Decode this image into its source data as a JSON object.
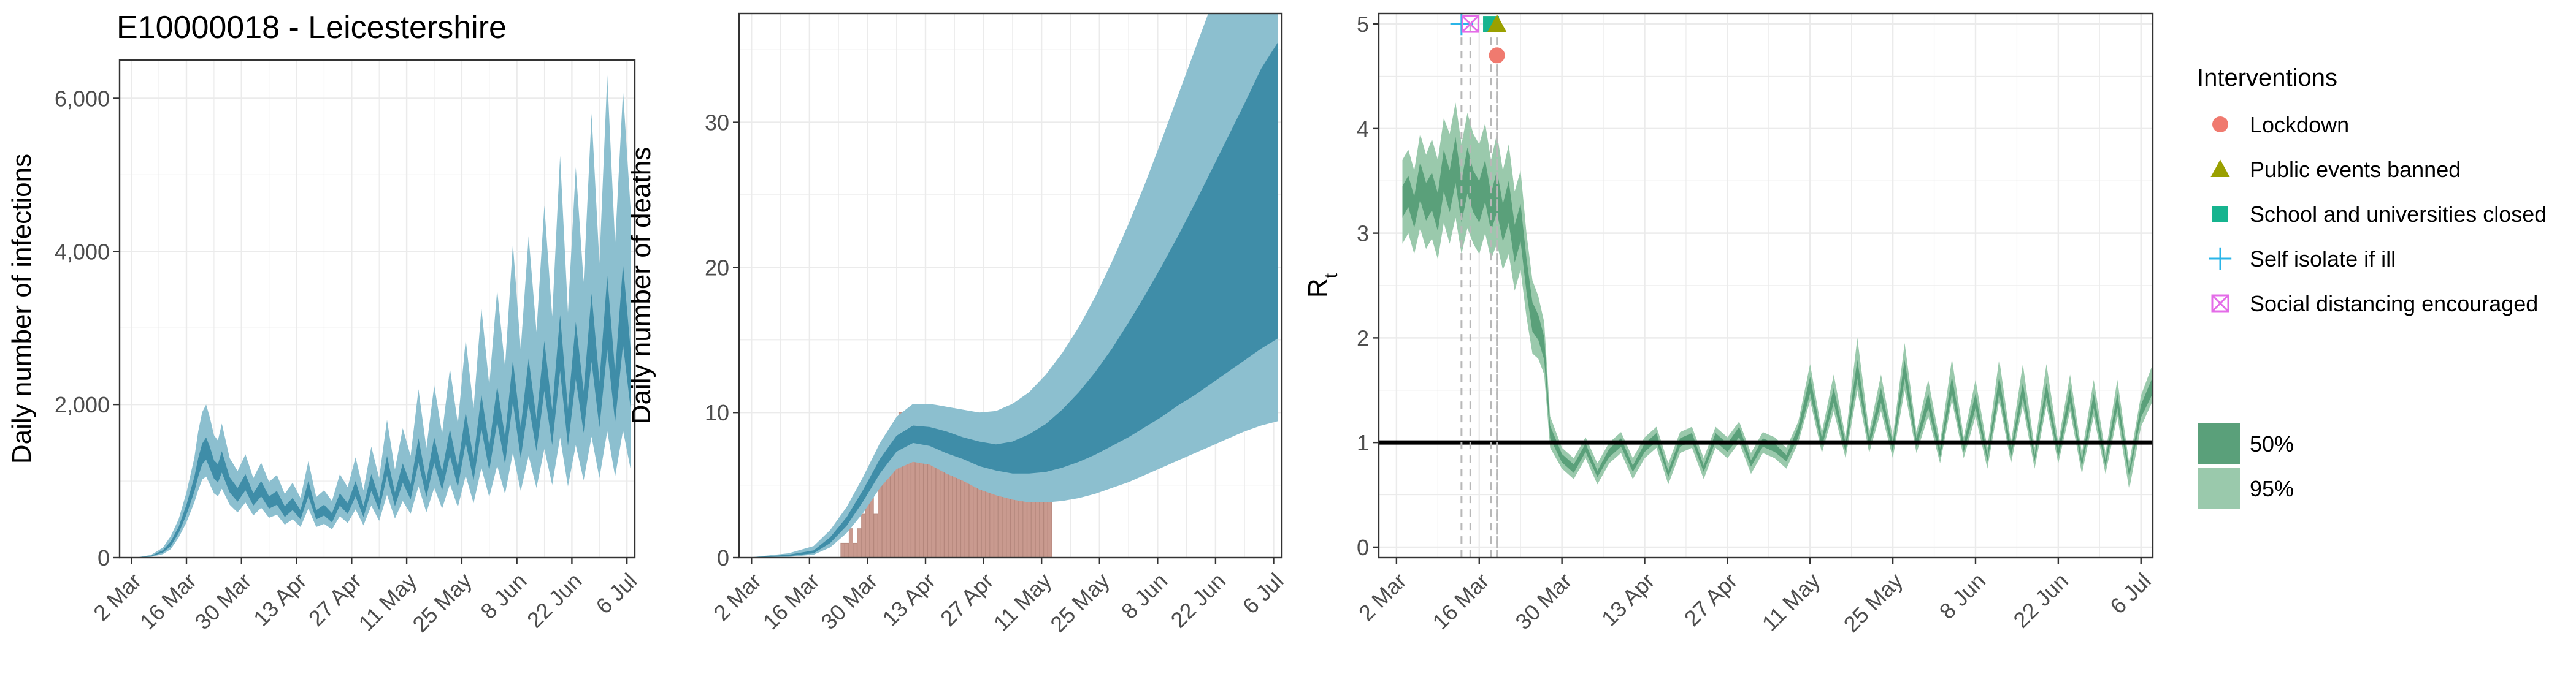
{
  "figure": {
    "title": "E10000018 - Leicestershire"
  },
  "colors": {
    "band_blue_95": "#8cbfcf",
    "band_blue_50": "#3f8da8",
    "band_green_95": "#9ac9ac",
    "band_green_50": "#5aa07a",
    "deaths_bar": "#c99a8f",
    "grid": "#ebebeb",
    "panel_border": "#333333",
    "rt_reference": "#000000",
    "lockdown": "#f07a6f",
    "public_events": "#9aa000",
    "schools": "#16b48f",
    "self_isolate": "#2ab5e8",
    "social_distancing": "#e46ce8"
  },
  "chart_data": [
    {
      "name": "infections",
      "type": "area",
      "ylabel": "Daily number of infections",
      "ylim": [
        0,
        6500
      ],
      "yticks": [
        0,
        2000,
        4000,
        6000
      ],
      "ytick_labels": [
        "0",
        "2,000",
        "4,000",
        "6,000"
      ],
      "xlim": [
        -2,
        129
      ],
      "xticks": [
        1,
        15,
        29,
        43,
        57,
        71,
        85,
        99,
        113,
        127
      ],
      "xtick_labels": [
        "2 Mar",
        "16 Mar",
        "30 Mar",
        "13 Apr",
        "27 Apr",
        "11 May",
        "25 May",
        "8 Jun",
        "22 Jun",
        "6 Jul"
      ],
      "x": [
        3,
        6,
        9,
        11,
        13,
        15,
        17,
        18,
        19,
        20,
        21,
        22,
        23,
        24,
        26,
        28,
        30,
        32,
        34,
        36,
        38,
        40,
        42,
        44,
        46,
        48,
        50,
        52,
        54,
        56,
        58,
        60,
        62,
        64,
        66,
        68,
        70,
        72,
        74,
        76,
        78,
        80,
        82,
        84,
        86,
        88,
        90,
        92,
        94,
        96,
        98,
        100,
        102,
        104,
        106,
        108,
        110,
        112,
        114,
        116,
        118,
        120,
        122,
        124,
        126,
        128
      ],
      "median": [
        5,
        20,
        80,
        180,
        360,
        620,
        950,
        1180,
        1350,
        1420,
        1300,
        1150,
        1100,
        1250,
        950,
        820,
        980,
        760,
        900,
        720,
        780,
        600,
        700,
        560,
        900,
        560,
        620,
        520,
        760,
        640,
        900,
        600,
        980,
        700,
        1200,
        760,
        1100,
        860,
        1400,
        900,
        1400,
        1000,
        1500,
        1050,
        1700,
        1150,
        1900,
        1300,
        2000,
        1400,
        2300,
        1500,
        2300,
        1600,
        2500,
        1700,
        2800,
        1700,
        2700,
        1900,
        3000,
        2000,
        3200,
        2100,
        3300,
        2300
      ],
      "ci50_low": [
        4,
        16,
        65,
        150,
        320,
        560,
        860,
        1060,
        1220,
        1280,
        1160,
        1030,
        980,
        1110,
        850,
        730,
        880,
        680,
        800,
        640,
        690,
        530,
        620,
        500,
        800,
        500,
        550,
        460,
        680,
        570,
        800,
        530,
        870,
        620,
        1070,
        670,
        980,
        760,
        1240,
        790,
        1240,
        880,
        1330,
        920,
        1500,
        1010,
        1680,
        1140,
        1770,
        1220,
        2030,
        1300,
        2010,
        1390,
        2180,
        1470,
        2440,
        1460,
        2330,
        1630,
        2560,
        1700,
        2720,
        1770,
        2780,
        1920
      ],
      "ci50_high": [
        6,
        24,
        95,
        210,
        400,
        690,
        1050,
        1300,
        1490,
        1570,
        1440,
        1270,
        1220,
        1390,
        1050,
        910,
        1090,
        840,
        1000,
        800,
        870,
        670,
        780,
        620,
        1000,
        620,
        690,
        580,
        840,
        710,
        1000,
        670,
        1090,
        780,
        1330,
        850,
        1230,
        960,
        1560,
        1010,
        1570,
        1120,
        1680,
        1180,
        1900,
        1290,
        2130,
        1460,
        2240,
        1580,
        2580,
        1700,
        2600,
        1810,
        2830,
        1930,
        3170,
        1940,
        3080,
        2170,
        3450,
        2300,
        3680,
        2430,
        3830,
        2680
      ],
      "ci95_low": [
        2,
        10,
        45,
        110,
        260,
        460,
        720,
        880,
        1020,
        1060,
        950,
        840,
        800,
        900,
        690,
        590,
        720,
        550,
        650,
        520,
        560,
        430,
        500,
        400,
        640,
        400,
        440,
        370,
        540,
        450,
        630,
        420,
        680,
        480,
        820,
        510,
        740,
        570,
        930,
        590,
        910,
        640,
        960,
        660,
        1070,
        710,
        1170,
        790,
        1200,
        830,
        1370,
        870,
        1330,
        910,
        1420,
        950,
        1570,
        930,
        1470,
        1010,
        1580,
        1040,
        1650,
        1060,
        1660,
        1140
      ],
      "ci95_high": [
        9,
        35,
        130,
        280,
        500,
        850,
        1300,
        1650,
        1900,
        2000,
        1820,
        1600,
        1530,
        1750,
        1300,
        1130,
        1350,
        1040,
        1240,
        990,
        1080,
        830,
        980,
        780,
        1260,
        790,
        880,
        740,
        1090,
        920,
        1310,
        880,
        1450,
        1040,
        1800,
        1150,
        1690,
        1330,
        2200,
        1430,
        2250,
        1620,
        2470,
        1750,
        2850,
        1950,
        3260,
        2250,
        3500,
        2490,
        4100,
        2720,
        4200,
        2950,
        4600,
        3150,
        5250,
        3200,
        5100,
        3600,
        5800,
        3850,
        6300,
        4100,
        6100,
        4500
      ]
    },
    {
      "name": "deaths",
      "type": "bar+area",
      "ylabel": "Daily number of deaths",
      "ylim": [
        0,
        37.5
      ],
      "yticks": [
        0,
        10,
        20,
        30
      ],
      "ytick_labels": [
        "0",
        "10",
        "20",
        "30"
      ],
      "xlim": [
        -2,
        129
      ],
      "xticks": [
        1,
        15,
        29,
        43,
        57,
        71,
        85,
        99,
        113,
        127
      ],
      "xtick_labels": [
        "2 Mar",
        "16 Mar",
        "30 Mar",
        "13 Apr",
        "27 Apr",
        "11 May",
        "25 May",
        "8 Jun",
        "22 Jun",
        "6 Jul"
      ],
      "bars_start": 23,
      "bars": [
        1,
        1,
        2,
        1,
        2,
        3,
        4,
        5,
        3,
        6,
        7,
        8,
        7,
        9,
        10,
        9,
        10,
        10,
        10,
        9,
        10,
        9,
        8,
        9,
        8,
        10,
        8,
        9,
        7,
        8,
        9,
        7,
        8,
        6,
        7,
        8,
        7,
        6,
        7,
        6,
        7,
        6,
        7,
        6,
        7,
        6,
        6,
        5,
        7,
        6,
        7
      ],
      "x": [
        0,
        10,
        16,
        20,
        24,
        28,
        32,
        36,
        40,
        44,
        48,
        52,
        56,
        60,
        64,
        68,
        72,
        76,
        80,
        84,
        88,
        92,
        96,
        100,
        104,
        108,
        112,
        116,
        120,
        124,
        128
      ],
      "median": [
        0,
        0.1,
        0.4,
        1.2,
        2.5,
        4.3,
        6.3,
        7.8,
        8.4,
        8.3,
        7.9,
        7.5,
        7.1,
        6.9,
        6.9,
        7.1,
        7.5,
        8.1,
        8.9,
        9.9,
        11.0,
        12.3,
        13.7,
        15.2,
        16.8,
        18.4,
        20.1,
        21.8,
        23.5,
        25.3,
        26.9
      ],
      "ci50_low": [
        0,
        0.1,
        0.3,
        1.0,
        2.2,
        3.9,
        5.8,
        7.3,
        7.9,
        7.7,
        7.2,
        6.8,
        6.3,
        6.0,
        5.8,
        5.8,
        5.9,
        6.2,
        6.6,
        7.1,
        7.7,
        8.3,
        9.0,
        9.7,
        10.5,
        11.2,
        12.0,
        12.8,
        13.6,
        14.4,
        15.1
      ],
      "ci50_high": [
        0,
        0.2,
        0.5,
        1.4,
        2.8,
        4.7,
        6.8,
        8.4,
        9.1,
        9.0,
        8.7,
        8.3,
        8.0,
        7.8,
        8.0,
        8.5,
        9.2,
        10.2,
        11.4,
        12.8,
        14.4,
        16.2,
        18.1,
        20.1,
        22.2,
        24.4,
        26.7,
        29.0,
        31.3,
        33.7,
        35.5
      ],
      "ci95_low": [
        0,
        0.05,
        0.2,
        0.7,
        1.7,
        3.1,
        4.8,
        6.1,
        6.6,
        6.4,
        5.8,
        5.3,
        4.7,
        4.3,
        4.0,
        3.8,
        3.8,
        3.9,
        4.1,
        4.4,
        4.8,
        5.2,
        5.7,
        6.2,
        6.7,
        7.2,
        7.7,
        8.2,
        8.7,
        9.1,
        9.4
      ],
      "ci95_high": [
        0,
        0.3,
        0.8,
        1.9,
        3.5,
        5.6,
        7.9,
        9.7,
        10.6,
        10.6,
        10.4,
        10.2,
        10.0,
        10.1,
        10.6,
        11.4,
        12.6,
        14.1,
        15.9,
        18.0,
        20.4,
        23.0,
        25.8,
        28.8,
        31.9,
        35.0,
        38.1,
        41.2,
        44.3,
        47.4,
        49.0
      ]
    },
    {
      "name": "rt",
      "type": "area",
      "ylabel": "R",
      "ylabel_subscript": "t",
      "ylim": [
        -0.1,
        5.1
      ],
      "yticks": [
        0,
        1,
        2,
        3,
        4,
        5
      ],
      "ytick_labels": [
        "0",
        "1",
        "2",
        "3",
        "4",
        "5"
      ],
      "xlim": [
        -2,
        129
      ],
      "xticks": [
        1,
        15,
        29,
        43,
        57,
        71,
        85,
        99,
        113,
        127
      ],
      "xtick_labels": [
        "2 Mar",
        "16 Mar",
        "30 Mar",
        "13 Apr",
        "27 Apr",
        "11 May",
        "25 May",
        "8 Jun",
        "22 Jun",
        "6 Jul"
      ],
      "reference_y": 1,
      "x": [
        2,
        3,
        4,
        5,
        6,
        7,
        8,
        9,
        10,
        11,
        12,
        13,
        14,
        15,
        16,
        17,
        18,
        19,
        20,
        21,
        22,
        23,
        24,
        25,
        26,
        27,
        29,
        31,
        33,
        35,
        37,
        39,
        41,
        43,
        45,
        47,
        49,
        51,
        53,
        55,
        57,
        59,
        61,
        63,
        65,
        67,
        69,
        71,
        73,
        75,
        77,
        79,
        81,
        83,
        85,
        87,
        89,
        91,
        93,
        95,
        97,
        99,
        101,
        103,
        105,
        107,
        109,
        111,
        113,
        115,
        117,
        119,
        121,
        123,
        125,
        127,
        129
      ],
      "median": [
        3.3,
        3.4,
        3.2,
        3.5,
        3.3,
        3.4,
        3.2,
        3.6,
        3.4,
        3.7,
        3.3,
        3.6,
        3.4,
        3.3,
        3.5,
        3.2,
        3.4,
        3.1,
        3.3,
        2.9,
        3.1,
        2.6,
        2.2,
        2.1,
        1.9,
        1.1,
        0.85,
        0.75,
        0.95,
        0.7,
        0.9,
        1.0,
        0.75,
        0.95,
        1.05,
        0.7,
        1.0,
        1.05,
        0.75,
        1.05,
        0.95,
        1.1,
        0.8,
        1.0,
        0.95,
        0.85,
        1.1,
        1.55,
        1.0,
        1.45,
        0.95,
        1.7,
        1.0,
        1.45,
        0.95,
        1.7,
        1.0,
        1.4,
        0.9,
        1.55,
        0.95,
        1.4,
        0.85,
        1.55,
        0.9,
        1.5,
        0.85,
        1.5,
        0.9,
        1.45,
        0.8,
        1.4,
        0.8,
        1.4,
        0.7,
        1.3,
        1.55
      ],
      "ci50_low": [
        3.15,
        3.25,
        3.05,
        3.32,
        3.12,
        3.22,
        3.02,
        3.4,
        3.2,
        3.48,
        3.1,
        3.38,
        3.2,
        3.1,
        3.3,
        3.02,
        3.2,
        2.92,
        3.1,
        2.72,
        2.92,
        2.44,
        2.06,
        1.98,
        1.79,
        1.04,
        0.81,
        0.71,
        0.91,
        0.67,
        0.86,
        0.96,
        0.72,
        0.91,
        1.01,
        0.67,
        0.96,
        1.01,
        0.72,
        1.01,
        0.91,
        1.05,
        0.77,
        0.96,
        0.91,
        0.82,
        1.05,
        1.47,
        0.96,
        1.38,
        0.91,
        1.61,
        0.96,
        1.38,
        0.91,
        1.61,
        0.96,
        1.33,
        0.86,
        1.47,
        0.91,
        1.33,
        0.82,
        1.47,
        0.86,
        1.43,
        0.82,
        1.43,
        0.86,
        1.38,
        0.77,
        1.33,
        0.77,
        1.33,
        0.67,
        1.24,
        1.47
      ],
      "ci50_high": [
        3.45,
        3.55,
        3.35,
        3.68,
        3.48,
        3.58,
        3.38,
        3.8,
        3.6,
        3.92,
        3.5,
        3.82,
        3.6,
        3.5,
        3.7,
        3.38,
        3.6,
        3.28,
        3.5,
        3.08,
        3.28,
        2.76,
        2.34,
        2.22,
        2.01,
        1.16,
        0.89,
        0.79,
        0.99,
        0.73,
        0.94,
        1.04,
        0.78,
        0.99,
        1.09,
        0.73,
        1.04,
        1.09,
        0.78,
        1.09,
        0.99,
        1.15,
        0.83,
        1.04,
        0.99,
        0.88,
        1.15,
        1.63,
        1.04,
        1.52,
        0.99,
        1.79,
        1.04,
        1.52,
        0.99,
        1.79,
        1.04,
        1.47,
        0.94,
        1.63,
        0.99,
        1.47,
        0.88,
        1.63,
        0.94,
        1.57,
        0.88,
        1.57,
        0.94,
        1.52,
        0.83,
        1.47,
        0.83,
        1.47,
        0.73,
        1.36,
        1.63
      ],
      "ci95_low": [
        2.9,
        3.0,
        2.8,
        3.05,
        2.85,
        2.95,
        2.75,
        3.1,
        2.9,
        3.15,
        2.8,
        3.05,
        2.9,
        2.8,
        3.0,
        2.75,
        2.9,
        2.65,
        2.8,
        2.45,
        2.65,
        2.2,
        1.85,
        1.8,
        1.65,
        0.95,
        0.75,
        0.65,
        0.85,
        0.6,
        0.8,
        0.9,
        0.65,
        0.85,
        0.95,
        0.6,
        0.9,
        0.95,
        0.65,
        0.95,
        0.85,
        1.0,
        0.7,
        0.9,
        0.85,
        0.75,
        1.0,
        1.4,
        0.9,
        1.3,
        0.85,
        1.5,
        0.9,
        1.3,
        0.85,
        1.5,
        0.9,
        1.25,
        0.8,
        1.4,
        0.85,
        1.25,
        0.75,
        1.4,
        0.8,
        1.35,
        0.75,
        1.35,
        0.8,
        1.3,
        0.7,
        1.25,
        0.7,
        1.25,
        0.55,
        1.15,
        1.4
      ],
      "ci95_high": [
        3.7,
        3.8,
        3.6,
        3.95,
        3.75,
        3.9,
        3.7,
        4.1,
        3.95,
        4.25,
        3.85,
        4.15,
        3.95,
        3.85,
        4.05,
        3.7,
        3.95,
        3.6,
        3.85,
        3.4,
        3.6,
        3.0,
        2.55,
        2.4,
        2.15,
        1.25,
        0.95,
        0.85,
        1.05,
        0.8,
        1.0,
        1.1,
        0.85,
        1.05,
        1.15,
        0.8,
        1.1,
        1.15,
        0.85,
        1.15,
        1.05,
        1.2,
        0.9,
        1.1,
        1.05,
        0.95,
        1.2,
        1.75,
        1.1,
        1.65,
        1.05,
        2.0,
        1.1,
        1.65,
        1.05,
        1.95,
        1.1,
        1.6,
        1.0,
        1.8,
        1.05,
        1.6,
        0.95,
        1.8,
        1.0,
        1.75,
        0.95,
        1.75,
        1.0,
        1.65,
        0.9,
        1.6,
        0.9,
        1.6,
        0.8,
        1.45,
        1.75
      ],
      "interventions": [
        {
          "label": "Self isolate if ill",
          "key": "self_isolate",
          "shape": "plus",
          "x": 12,
          "y": 5.0
        },
        {
          "label": "Social distancing encouraged",
          "key": "social_distancing",
          "shape": "boxx",
          "x": 13.5,
          "y": 5.0
        },
        {
          "label": "School and universities closed",
          "key": "schools",
          "shape": "square",
          "x": 17,
          "y": 5.0
        },
        {
          "label": "Public events banned",
          "key": "public_events",
          "shape": "triangle",
          "x": 18,
          "y": 5.0
        },
        {
          "label": "Lockdown",
          "key": "lockdown",
          "shape": "circle",
          "x": 18,
          "y": 4.7
        }
      ]
    }
  ],
  "legend": {
    "interventions_title": "Interventions",
    "intervention_items": [
      {
        "label": "Lockdown",
        "key": "lockdown",
        "shape": "circle"
      },
      {
        "label": "Public events banned",
        "key": "public_events",
        "shape": "triangle"
      },
      {
        "label": "School and universities closed",
        "key": "schools",
        "shape": "square"
      },
      {
        "label": "Self isolate if ill",
        "key": "self_isolate",
        "shape": "plus"
      },
      {
        "label": "Social distancing encouraged",
        "key": "social_distancing",
        "shape": "boxx"
      }
    ],
    "band_items": [
      {
        "label": "50%",
        "key": "band_green_50"
      },
      {
        "label": "95%",
        "key": "band_green_95"
      }
    ]
  }
}
